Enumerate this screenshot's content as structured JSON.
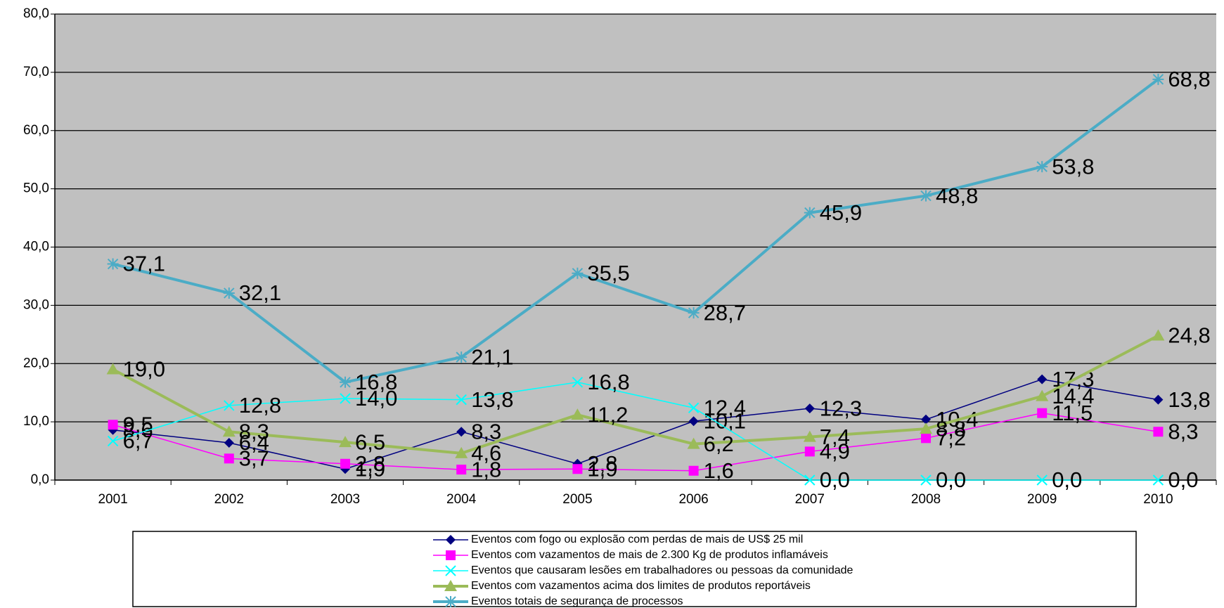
{
  "chart_data": {
    "type": "line",
    "categories": [
      "2001",
      "2002",
      "2003",
      "2004",
      "2005",
      "2006",
      "2007",
      "2008",
      "2009",
      "2010"
    ],
    "ylim": [
      0,
      80
    ],
    "yticks": [
      {
        "value": 0,
        "label": "0,0"
      },
      {
        "value": 10,
        "label": "10,0"
      },
      {
        "value": 20,
        "label": "20,0"
      },
      {
        "value": 30,
        "label": "30,0"
      },
      {
        "value": 40,
        "label": "40,0"
      },
      {
        "value": 50,
        "label": "50,0"
      },
      {
        "value": 60,
        "label": "60,0"
      },
      {
        "value": 70,
        "label": "70,0"
      },
      {
        "value": 80,
        "label": "80,0"
      }
    ],
    "grid": true,
    "series": [
      {
        "name": "Eventos com fogo ou explosão com perdas de mais de US$ 25 mil",
        "color": "#000080",
        "marker": "diamond",
        "width": 1.5,
        "values": [
          8.6,
          6.4,
          1.9,
          8.3,
          2.8,
          10.1,
          12.3,
          10.4,
          17.3,
          13.8
        ],
        "value_labels": [
          "8,6",
          "6,4",
          "1,9",
          "8,3",
          "2,8",
          "10,1",
          "12,3",
          "10,4",
          "17,3",
          "13,8"
        ]
      },
      {
        "name": "Eventos com vazamentos de mais de 2.300  Kg de produtos inflamáveis",
        "color": "#ff00ff",
        "marker": "square",
        "width": 1.5,
        "values": [
          9.5,
          3.7,
          2.8,
          1.8,
          1.9,
          1.6,
          4.9,
          7.2,
          11.5,
          8.3
        ],
        "value_labels": [
          "9,5",
          "3,7",
          "2,8",
          "1,8",
          "1,9",
          "1,6",
          "4,9",
          "7,2",
          "11,5",
          "8,3"
        ]
      },
      {
        "name": "Eventos que causaram lesões em trabalhadores ou pessoas da comunidade",
        "color": "#00ffff",
        "marker": "x",
        "width": 1.5,
        "values": [
          6.7,
          12.8,
          14.0,
          13.8,
          16.8,
          12.4,
          0.0,
          0.0,
          0.0,
          0.0
        ],
        "value_labels": [
          "6,7",
          "12,8",
          "14,0",
          "13,8",
          "16,8",
          "12,4",
          "0,0",
          "0,0",
          "0,0",
          "0,0"
        ]
      },
      {
        "name": "Eventos com vazamentos acima dos limites de produtos reportáveis",
        "color": "#9bbb59",
        "marker": "triangle",
        "width": 4,
        "values": [
          19.0,
          8.3,
          6.5,
          4.6,
          11.2,
          6.2,
          7.4,
          8.8,
          14.4,
          24.8
        ],
        "value_labels": [
          "19,0",
          "8,3",
          "6,5",
          "4,6",
          "11,2",
          "6,2",
          "7,4",
          "8,8",
          "14,4",
          "24,8"
        ]
      },
      {
        "name": "Eventos totais de segurança de processos",
        "color": "#4bacc6",
        "marker": "star",
        "width": 4,
        "values": [
          37.1,
          32.1,
          16.8,
          21.1,
          35.5,
          28.7,
          45.9,
          48.8,
          53.8,
          68.8
        ],
        "value_labels": [
          "37,1",
          "32,1",
          "16,8",
          "21,1",
          "35,5",
          "28,7",
          "45,9",
          "48,8",
          "53,8",
          "68,8"
        ]
      }
    ]
  }
}
